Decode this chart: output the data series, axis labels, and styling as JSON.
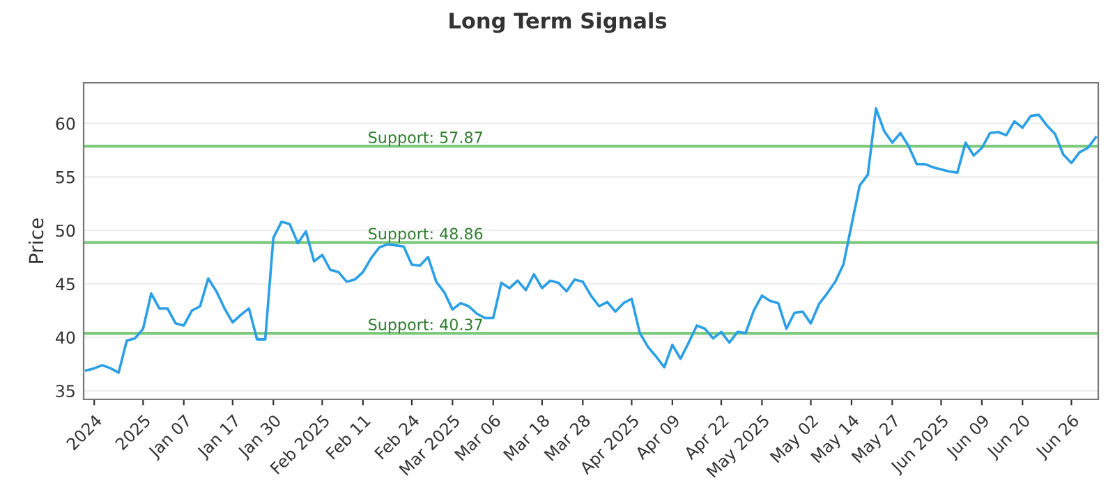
{
  "chart_data": {
    "type": "line",
    "title": "Long Term Signals",
    "ylabel": "Price",
    "categories": [
      null,
      "2024",
      null,
      null,
      null,
      null,
      null,
      "2025",
      null,
      null,
      null,
      null,
      "Jan 07",
      null,
      null,
      null,
      null,
      null,
      "Jan 17",
      null,
      null,
      null,
      null,
      "Jan 30",
      null,
      null,
      null,
      null,
      null,
      "Feb 2025",
      null,
      null,
      null,
      null,
      "Feb 11",
      null,
      null,
      null,
      null,
      null,
      "Feb 24",
      null,
      null,
      null,
      null,
      "Mar 2025",
      null,
      null,
      null,
      null,
      "Mar 06",
      null,
      null,
      null,
      null,
      null,
      "Mar 18",
      null,
      null,
      null,
      null,
      "Mar 28",
      null,
      null,
      null,
      null,
      null,
      "Apr 2025",
      null,
      null,
      null,
      null,
      "Apr 09",
      null,
      null,
      null,
      null,
      null,
      "Apr 22",
      null,
      null,
      null,
      null,
      "May 2025",
      null,
      null,
      null,
      null,
      null,
      "May 02",
      null,
      null,
      null,
      null,
      "May 14",
      null,
      null,
      null,
      null,
      "May 27",
      null,
      null,
      null,
      null,
      null,
      "Jun 2025",
      null,
      null,
      null,
      null,
      "Jun 09",
      null,
      null,
      null,
      null,
      "Jun 20",
      null,
      null,
      null,
      null,
      null,
      "Jun 26",
      null,
      null,
      null
    ],
    "series": [
      {
        "color": "#2b9fe6",
        "values": [
          36.9,
          37.1,
          37.4,
          37.1,
          36.7,
          39.7,
          39.9,
          40.8,
          44.1,
          42.7,
          42.7,
          41.3,
          41.1,
          42.5,
          42.9,
          45.5,
          44.3,
          42.7,
          41.4,
          42.1,
          42.7,
          39.8,
          39.8,
          49.3,
          50.8,
          50.6,
          48.8,
          49.9,
          47.1,
          47.7,
          46.3,
          46.1,
          45.2,
          45.4,
          46.1,
          47.4,
          48.4,
          48.7,
          48.6,
          48.5,
          46.8,
          46.7,
          47.5,
          45.2,
          44.2,
          42.6,
          43.2,
          42.9,
          42.2,
          41.8,
          41.8,
          45.1,
          44.6,
          45.3,
          44.4,
          45.9,
          44.6,
          45.3,
          45.1,
          44.3,
          45.4,
          45.2,
          43.9,
          42.9,
          43.3,
          42.4,
          43.2,
          43.6,
          40.4,
          39.1,
          38.2,
          37.2,
          39.3,
          38.0,
          39.5,
          41.1,
          40.8,
          39.9,
          40.5,
          39.5,
          40.5,
          40.4,
          42.5,
          43.9,
          43.4,
          43.2,
          40.8,
          42.3,
          42.4,
          41.3,
          43.1,
          44.1,
          45.2,
          46.8,
          50.5,
          54.2,
          55.2,
          61.4,
          59.3,
          58.2,
          59.1,
          57.9,
          56.2,
          56.2,
          55.9,
          55.7,
          55.5,
          55.4,
          58.2,
          57.0,
          57.7,
          59.1,
          59.2,
          58.9,
          60.2,
          59.6,
          60.7,
          60.8,
          59.8,
          59.0,
          57.1,
          56.3,
          57.3,
          57.7,
          58.7
        ]
      }
    ],
    "ylim": [
      34.2,
      63.8
    ],
    "yticks": [
      35,
      40,
      45,
      50,
      55,
      60
    ],
    "grid": "y",
    "ref_lines": [
      {
        "axis": "y",
        "value": 57.87,
        "label": "Support: 57.87",
        "color": "#7dc97d"
      },
      {
        "axis": "y",
        "value": 48.86,
        "label": "Support: 48.86",
        "color": "#7dc97d"
      },
      {
        "axis": "y",
        "value": 40.37,
        "label": "Support: 40.37",
        "color": "#7dc97d"
      }
    ]
  }
}
